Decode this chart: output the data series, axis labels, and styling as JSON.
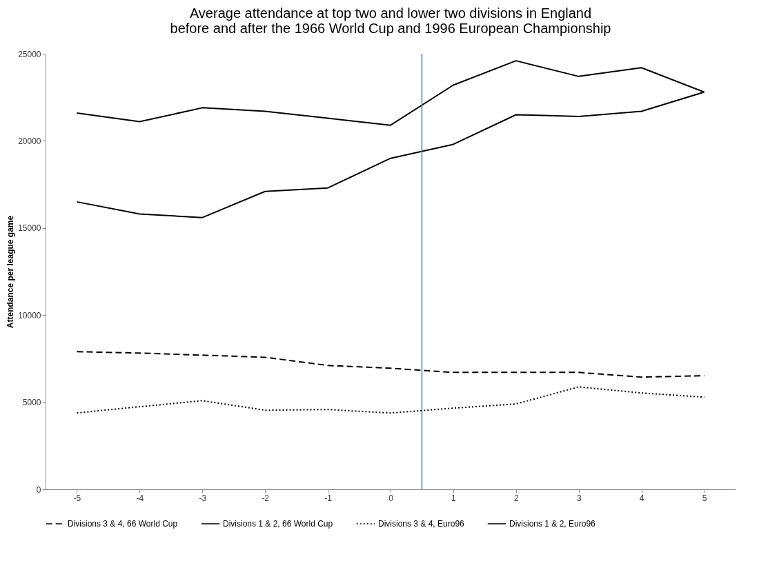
{
  "chart_data": {
    "type": "line",
    "title": "Average attendance at top two and lower two divisions in England\nbefore and after the 1966 World Cup and 1996 European Championship",
    "ylabel": "Attendance per league game",
    "x": [
      -5,
      -4,
      -3,
      -2,
      -1,
      0,
      1,
      2,
      3,
      4,
      5
    ],
    "xlim": [
      -5.5,
      5.5
    ],
    "xticks": [
      -5,
      -4,
      -3,
      -2,
      -1,
      0,
      1,
      2,
      3,
      4,
      5
    ],
    "ylim": [
      0,
      25000
    ],
    "yticks": [
      0,
      5000,
      10000,
      15000,
      20000,
      25000
    ],
    "grid": false,
    "legend": "bottom",
    "marker": "none",
    "series": [
      {
        "name": "Divisions 3 & 4, 66 World Cup",
        "color": "#000000",
        "line_style": "dashed",
        "values": [
          7900,
          7820,
          7700,
          7580,
          7110,
          6950,
          6710,
          6710,
          6710,
          6440,
          6520
        ]
      },
      {
        "name": "Divisions 1 & 2, 66 World Cup",
        "color": "#000000",
        "line_style": "solid",
        "values": [
          21600,
          21100,
          21900,
          21700,
          21300,
          20900,
          23200,
          24600,
          23700,
          24200,
          22800
        ]
      },
      {
        "name": "Divisions 3 & 4, Euro96",
        "color": "#000000",
        "line_style": "dotted",
        "values": [
          4380,
          4740,
          5090,
          4540,
          4580,
          4380,
          4660,
          4900,
          5880,
          5530,
          5290
        ]
      },
      {
        "name": "Divisions 1 & 2, Euro96",
        "color": "#000000",
        "line_style": "solid",
        "values": [
          16500,
          15800,
          15600,
          17100,
          17300,
          19000,
          19800,
          21500,
          21400,
          21700,
          22800
        ]
      }
    ],
    "ref_lines": [
      {
        "axis": "x",
        "value": 0.5,
        "color": "#4a7ebb"
      }
    ]
  }
}
